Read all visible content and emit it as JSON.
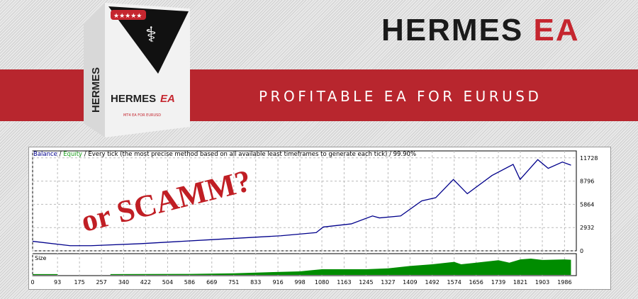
{
  "banner": {
    "title_main": "HERMES",
    "title_accent": "EA",
    "subtitle": "PROFITABLE EA FOR EURUSD",
    "overlay_text": "or SCAMM?"
  },
  "product_box": {
    "brand": "HERMES",
    "brand_accent": "EA",
    "tagline": "MT4 EA FOR EURUSD",
    "rating": "★★★★★"
  },
  "colors": {
    "brand_red": "#b8262e",
    "balance": "#00008b",
    "size": "#008c00"
  },
  "chart_data": [
    {
      "type": "line",
      "header": {
        "balance": "Balance",
        "sep": " / ",
        "equity": "Equity",
        "rest": " / Every tick (the most precise method based on all available least timeframes to generate each tick) / 99.90%"
      },
      "yticks": [
        0,
        2932,
        5864,
        8796,
        11728
      ],
      "ylim": [
        0,
        12600
      ],
      "xlim": [
        0,
        2030
      ],
      "grid": true,
      "series": [
        {
          "name": "Balance",
          "x": [
            0,
            140,
            218,
            402,
            665,
            927,
            1059,
            1085,
            1190,
            1269,
            1295,
            1374,
            1453,
            1505,
            1571,
            1623,
            1715,
            1794,
            1820,
            1886,
            1925,
            1978,
            2010
          ],
          "y": [
            1200,
            650,
            650,
            900,
            1400,
            1900,
            2300,
            3000,
            3400,
            4400,
            4150,
            4400,
            6300,
            6700,
            9000,
            7200,
            9500,
            10900,
            9000,
            11500,
            10400,
            11200,
            10800
          ]
        }
      ]
    },
    {
      "type": "area",
      "label": "Size",
      "xticks": [
        0,
        93,
        175,
        257,
        340,
        422,
        504,
        586,
        669,
        751,
        833,
        916,
        998,
        1080,
        1163,
        1245,
        1327,
        1409,
        1492,
        1574,
        1656,
        1739,
        1821,
        1903,
        1986
      ],
      "xlim": [
        0,
        2030
      ],
      "x": [
        0,
        93,
        94,
        290,
        291,
        586,
        751,
        998,
        1080,
        1245,
        1327,
        1409,
        1492,
        1574,
        1600,
        1656,
        1739,
        1780,
        1821,
        1860,
        1903,
        1986,
        2010
      ],
      "y": [
        0.05,
        0.05,
        0,
        0,
        0.05,
        0.06,
        0.1,
        0.22,
        0.35,
        0.35,
        0.4,
        0.55,
        0.65,
        0.8,
        0.65,
        0.75,
        0.9,
        0.75,
        0.95,
        1.0,
        0.92,
        0.95,
        0.93
      ]
    }
  ]
}
